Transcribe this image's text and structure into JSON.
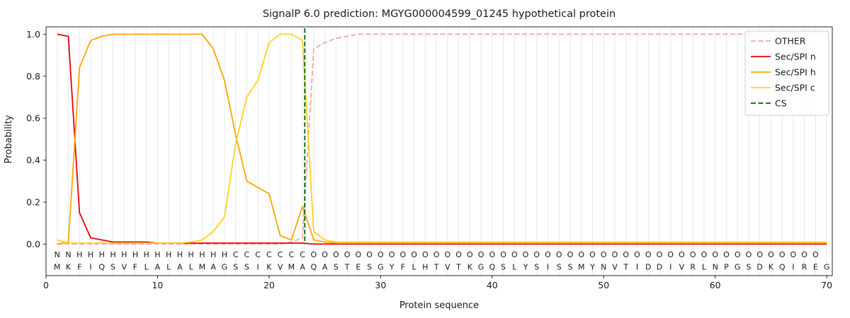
{
  "title": "SignalP 6.0 prediction: MGYG000004599_01245 hypothetical protein",
  "chart_data": {
    "type": "line",
    "title": "SignalP 6.0 prediction: MGYG000004599_01245 hypothetical protein",
    "xlabel": "Protein sequence",
    "ylabel": "Probability",
    "xlim": [
      0,
      70.5
    ],
    "ylim": [
      -0.15,
      1.035
    ],
    "xticks": [
      0,
      10,
      20,
      30,
      40,
      50,
      60,
      70
    ],
    "yticks": [
      0.0,
      0.2,
      0.4,
      0.6,
      0.8,
      1.0
    ],
    "grid": "vertical-per-residue",
    "grid_color": "#e8e8e8",
    "legend_position": "upper right",
    "sequence": "MKFIQSVFLALALMAGSSIKVMAQASTESGYFLHTVTKGQSLYSISSMYNVTIDDIVRLNPGSDKQIREG",
    "region_labels": "NNHHHHHHHHHHHHHHCCCCCCCOOOOOOOOOOOOOOOOOOOOOOOOOOOOOOOOOOOOOOOOOOOOOO",
    "series": [
      {
        "name": "OTHER",
        "color": "#f6a4a4",
        "dash": true,
        "values": [
          0,
          0,
          0,
          0,
          0,
          0,
          0,
          0,
          0,
          0,
          0,
          0,
          0,
          0,
          0,
          0,
          0,
          0,
          0,
          0,
          0,
          0.01,
          0.03,
          0.93,
          0.96,
          0.98,
          0.99,
          1,
          1,
          1,
          1,
          1,
          1,
          1,
          1,
          1,
          1,
          1,
          1,
          1,
          1,
          1,
          1,
          1,
          1,
          1,
          1,
          1,
          1,
          1,
          1,
          1,
          1,
          1,
          1,
          1,
          1,
          1,
          1,
          1,
          1,
          1,
          1,
          1,
          1,
          1,
          1,
          1,
          1,
          1
        ]
      },
      {
        "name": "Sec/SPI n",
        "color": "#e8000b",
        "dash": false,
        "values": [
          1,
          0.99,
          0.15,
          0.03,
          0.02,
          0.01,
          0.01,
          0.01,
          0.01,
          0.005,
          0.005,
          0.005,
          0.005,
          0.005,
          0.005,
          0.005,
          0.005,
          0.005,
          0.005,
          0.005,
          0.005,
          0.005,
          0.005,
          0,
          0,
          0,
          0,
          0,
          0,
          0,
          0,
          0,
          0,
          0,
          0,
          0,
          0,
          0,
          0,
          0,
          0,
          0,
          0,
          0,
          0,
          0,
          0,
          0,
          0,
          0,
          0,
          0,
          0,
          0,
          0,
          0,
          0,
          0,
          0,
          0,
          0,
          0,
          0,
          0,
          0,
          0,
          0,
          0,
          0,
          0
        ]
      },
      {
        "name": "Sec/SPI h",
        "color": "#ffa500",
        "dash": false,
        "values": [
          0,
          0.01,
          0.84,
          0.97,
          0.99,
          1,
          1,
          1,
          1,
          1,
          1,
          1,
          1,
          1,
          0.93,
          0.78,
          0.52,
          0.3,
          0.27,
          0.24,
          0.04,
          0.02,
          0.18,
          0.02,
          0.01,
          0.005,
          0.005,
          0.005,
          0.005,
          0.005,
          0.005,
          0.005,
          0.005,
          0.005,
          0.005,
          0.005,
          0.005,
          0.005,
          0.005,
          0.005,
          0.005,
          0.005,
          0.005,
          0.005,
          0.005,
          0.005,
          0.005,
          0.005,
          0.005,
          0.005,
          0.005,
          0.005,
          0.005,
          0.005,
          0.005,
          0.005,
          0.005,
          0.005,
          0.005,
          0.005,
          0.005,
          0.005,
          0.005,
          0.005,
          0.005,
          0.005,
          0.005,
          0.005,
          0.005,
          0.005
        ]
      },
      {
        "name": "Sec/SPI c",
        "color": "#ffd21f",
        "dash": false,
        "values": [
          0.02,
          0.005,
          0.005,
          0.005,
          0.005,
          0.005,
          0.005,
          0.005,
          0.005,
          0.005,
          0.005,
          0.005,
          0.01,
          0.02,
          0.06,
          0.13,
          0.48,
          0.7,
          0.78,
          0.96,
          1,
          1,
          0.97,
          0.06,
          0.02,
          0.01,
          0.01,
          0.01,
          0.01,
          0.01,
          0.01,
          0.01,
          0.01,
          0.01,
          0.01,
          0.01,
          0.01,
          0.01,
          0.01,
          0.01,
          0.01,
          0.01,
          0.01,
          0.01,
          0.01,
          0.01,
          0.01,
          0.01,
          0.01,
          0.01,
          0.01,
          0.01,
          0.01,
          0.01,
          0.01,
          0.01,
          0.01,
          0.01,
          0.01,
          0.01,
          0.01,
          0.01,
          0.01,
          0.01,
          0.01,
          0.01,
          0.01,
          0.01,
          0.01,
          0.01
        ]
      }
    ],
    "cs": {
      "name": "CS",
      "color": "#006400",
      "dash": true,
      "x": 23.2
    }
  },
  "region_colors": {
    "N": "#e8000b",
    "H": "#ffa500",
    "C": "#ffd21f",
    "O": "#a3a3a3"
  },
  "sequence_letter_color": "#333333"
}
